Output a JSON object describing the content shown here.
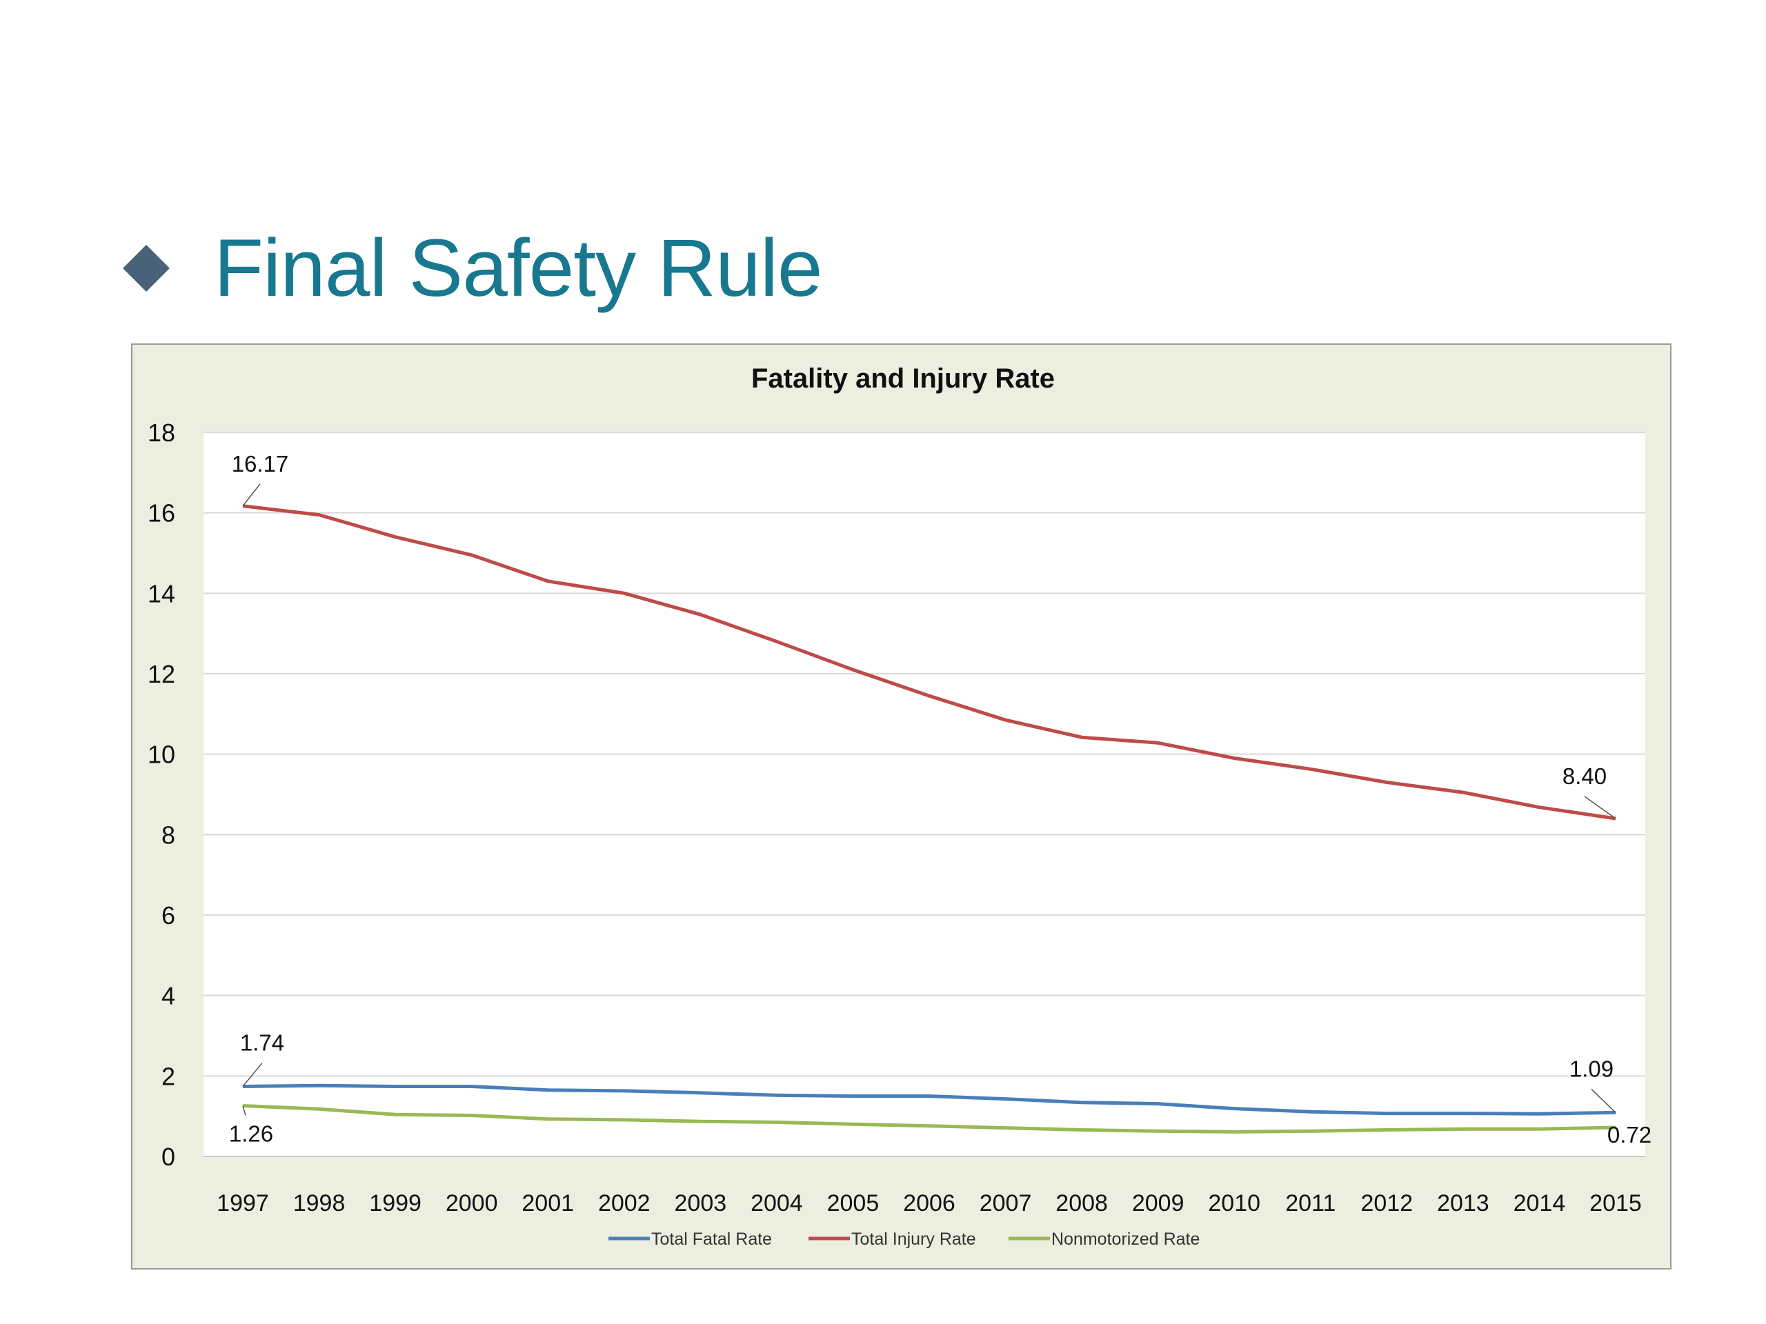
{
  "slide": {
    "title": "Final Safety Rule",
    "bullet_icon": "diamond-bullet-icon",
    "title_color": "#17788f",
    "bullet_color": "#4a6279"
  },
  "chart_data": {
    "type": "line",
    "title": "Fatality and Injury Rate",
    "xlabel": "",
    "ylabel": "",
    "ylim": [
      0,
      18
    ],
    "yticks": [
      0,
      2,
      4,
      6,
      8,
      10,
      12,
      14,
      16,
      18
    ],
    "grid": true,
    "legend_position": "bottom",
    "categories": [
      "1997",
      "1998",
      "1999",
      "2000",
      "2001",
      "2002",
      "2003",
      "2004",
      "2005",
      "2006",
      "2007",
      "2008",
      "2009",
      "2010",
      "2011",
      "2012",
      "2013",
      "2014",
      "2015"
    ],
    "series": [
      {
        "name": "Total Fatal Rate",
        "color": "#4a7ebb",
        "values": [
          1.74,
          1.76,
          1.74,
          1.74,
          1.65,
          1.63,
          1.58,
          1.52,
          1.5,
          1.5,
          1.43,
          1.34,
          1.31,
          1.19,
          1.11,
          1.07,
          1.07,
          1.06,
          1.09
        ],
        "labels": [
          {
            "index": 0,
            "text": "1.74"
          },
          {
            "index": 18,
            "text": "1.09"
          }
        ]
      },
      {
        "name": "Total Injury Rate",
        "color": "#be4b48",
        "values": [
          16.17,
          15.95,
          15.4,
          14.95,
          14.3,
          14.0,
          13.47,
          12.8,
          12.1,
          11.45,
          10.85,
          10.42,
          10.28,
          9.9,
          9.63,
          9.3,
          9.05,
          8.68,
          8.4
        ],
        "labels": [
          {
            "index": 0,
            "text": "16.17"
          },
          {
            "index": 18,
            "text": "8.40"
          }
        ]
      },
      {
        "name": "Nonmotorized Rate",
        "color": "#98b954",
        "values": [
          1.26,
          1.18,
          1.04,
          1.02,
          0.93,
          0.91,
          0.87,
          0.85,
          0.8,
          0.76,
          0.71,
          0.66,
          0.63,
          0.61,
          0.63,
          0.66,
          0.68,
          0.68,
          0.72
        ],
        "labels": [
          {
            "index": 0,
            "text": "1.26"
          },
          {
            "index": 18,
            "text": "0.72"
          }
        ]
      }
    ]
  }
}
